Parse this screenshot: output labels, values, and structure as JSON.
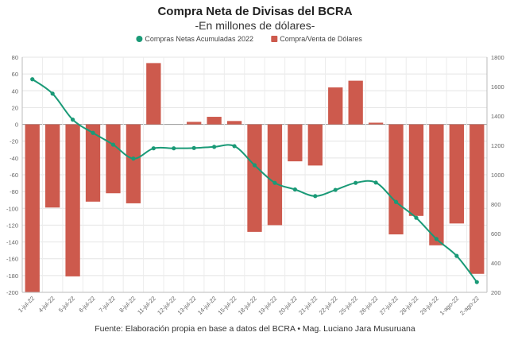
{
  "chart_data": {
    "type": "bar",
    "title": "Compra Neta de Divisas del BCRA",
    "subtitle": "-En millones de dólares-",
    "source": "Fuente: Elaboración propia en base a datos del BCRA • Mag. Luciano Jara Musuruana",
    "categories": [
      "1-jul-22",
      "4-jul-22",
      "5-jul-22",
      "6-jul-22",
      "7-jul-22",
      "8-jul-22",
      "11-jul-22",
      "12-jul-22",
      "13-jul-22",
      "14-jul-22",
      "15-jul-22",
      "18-jul-22",
      "19-jul-22",
      "20-jul-22",
      "21-jul-22",
      "22-jul-22",
      "25-jul-22",
      "26-jul-22",
      "27-jul-22",
      "28-jul-22",
      "29-jul-22",
      "1-ago-22",
      "2-ago-22"
    ],
    "series": [
      {
        "name": "Compra/Venta de Dólares",
        "type": "bar",
        "axis": "left",
        "color": "#cd5a4d",
        "values": [
          -200,
          -99,
          -181,
          -92,
          -82,
          -94,
          73,
          0,
          3,
          9,
          4,
          -128,
          -120,
          -44,
          -49,
          44,
          52,
          2,
          -131,
          -109,
          -144,
          -118,
          -178
        ]
      },
      {
        "name": "Compras Netas Acumuladas 2022",
        "type": "line",
        "axis": "right",
        "color": "#1a9a77",
        "values": [
          1650,
          1552,
          1375,
          1285,
          1205,
          1110,
          1180,
          1180,
          1182,
          1190,
          1195,
          1065,
          945,
          900,
          855,
          897,
          945,
          947,
          815,
          707,
          563,
          448,
          270
        ]
      }
    ],
    "y_left": {
      "min": -200,
      "max": 80,
      "ticks": [
        -200,
        -180,
        -160,
        -140,
        -120,
        -100,
        -80,
        -60,
        -40,
        -20,
        0,
        20,
        40,
        60,
        80
      ]
    },
    "y_right": {
      "min": 200,
      "max": 1800,
      "ticks": [
        200,
        400,
        600,
        800,
        1000,
        1200,
        1400,
        1600,
        1800
      ]
    },
    "legend_position": "top",
    "grid": true
  }
}
